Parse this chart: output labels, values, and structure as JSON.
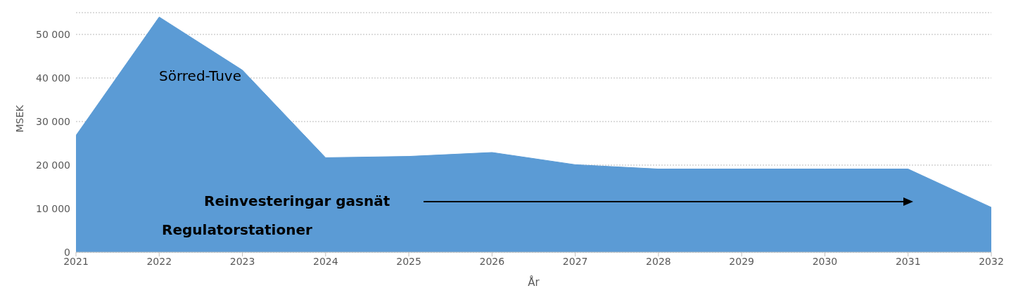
{
  "chart_data": {
    "type": "area",
    "xlabel": "År",
    "ylabel": "MSEK",
    "categories": [
      "2021",
      "2022",
      "2023",
      "2024",
      "2025",
      "2026",
      "2027",
      "2028",
      "2029",
      "2030",
      "2031",
      "2032"
    ],
    "series": [
      {
        "color": "#5b9bd5",
        "values": [
          26800,
          54000,
          41800,
          21700,
          22000,
          22900,
          20100,
          19100,
          19100,
          19100,
          19100,
          10300
        ]
      }
    ],
    "ylim": [
      0,
      55000
    ],
    "yticks": [
      {
        "value": 0,
        "label": "0"
      },
      {
        "value": 10000,
        "label": "10 000"
      },
      {
        "value": 20000,
        "label": "20 000"
      },
      {
        "value": 30000,
        "label": "30 000"
      },
      {
        "value": 40000,
        "label": "40 000"
      },
      {
        "value": 50000,
        "label": "50 000"
      }
    ],
    "grid": "y",
    "annotations": [
      "Sörred-Tuve",
      "Reinvesteringar gasnät",
      "Regulatorstationer"
    ]
  }
}
